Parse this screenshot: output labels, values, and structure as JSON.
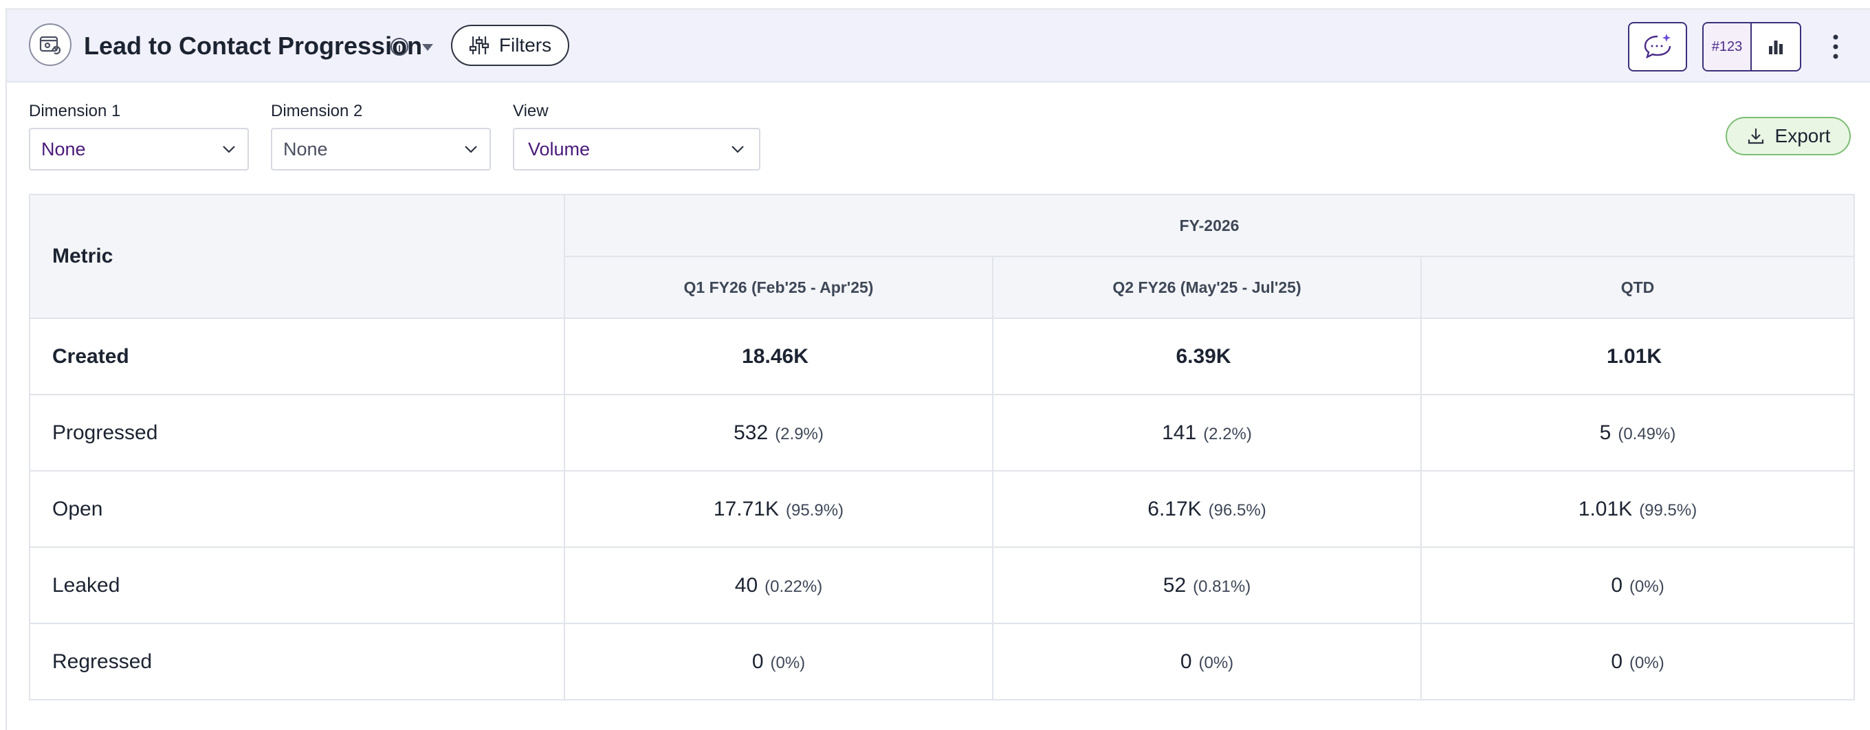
{
  "header": {
    "title": "Lead to Contact Progression",
    "filters_label": "Filters",
    "toggle_number_label": "#123"
  },
  "controls": {
    "dimension1": {
      "label": "Dimension 1",
      "value": "None"
    },
    "dimension2": {
      "label": "Dimension 2",
      "value": "None"
    },
    "view": {
      "label": "View",
      "value": "Volume"
    },
    "export_label": "Export"
  },
  "table": {
    "metric_header": "Metric",
    "group_header": "FY-2026",
    "columns": [
      "Q1 FY26 (Feb'25 - Apr'25)",
      "Q2 FY26 (May'25 - Jul'25)",
      "QTD"
    ],
    "rows": [
      {
        "label": "Created",
        "cells": [
          {
            "value": "18.46K",
            "pct": ""
          },
          {
            "value": "6.39K",
            "pct": ""
          },
          {
            "value": "1.01K",
            "pct": ""
          }
        ]
      },
      {
        "label": "Progressed",
        "cells": [
          {
            "value": "532",
            "pct": "(2.9%)"
          },
          {
            "value": "141",
            "pct": "(2.2%)"
          },
          {
            "value": "5",
            "pct": "(0.49%)"
          }
        ]
      },
      {
        "label": "Open",
        "cells": [
          {
            "value": "17.71K",
            "pct": "(95.9%)"
          },
          {
            "value": "6.17K",
            "pct": "(96.5%)"
          },
          {
            "value": "1.01K",
            "pct": "(99.5%)"
          }
        ]
      },
      {
        "label": "Leaked",
        "cells": [
          {
            "value": "40",
            "pct": "(0.22%)"
          },
          {
            "value": "52",
            "pct": "(0.81%)"
          },
          {
            "value": "0",
            "pct": "(0%)"
          }
        ]
      },
      {
        "label": "Regressed",
        "cells": [
          {
            "value": "0",
            "pct": "(0%)"
          },
          {
            "value": "0",
            "pct": "(0%)"
          },
          {
            "value": "0",
            "pct": "(0%)"
          }
        ]
      }
    ]
  },
  "colors": {
    "header_bg": "#f1f1fc",
    "accent_purple": "#3b2f7a",
    "select_value": "#4a1a7a",
    "export_bg": "#e9f6e4",
    "export_border": "#7bbd74"
  }
}
